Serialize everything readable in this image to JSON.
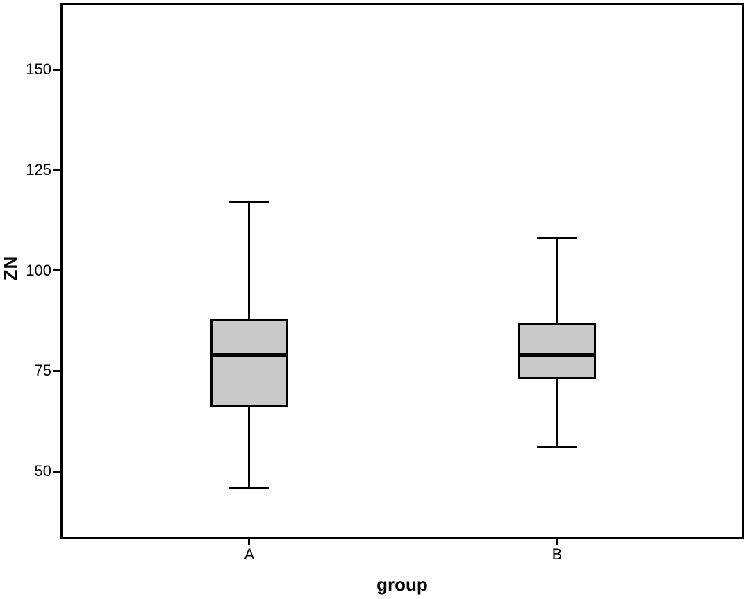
{
  "figure": {
    "background": "#ffffff"
  },
  "chart_data": {
    "type": "boxplot",
    "title": "",
    "xlabel": "group",
    "ylabel": "ZN",
    "categories": [
      "A",
      "B"
    ],
    "yticks": [
      50,
      75,
      100,
      125,
      150
    ],
    "ylim": [
      33.3,
      166.6
    ],
    "grid": false,
    "legend": "none",
    "boxes": [
      {
        "category": "A",
        "min": 46,
        "q1": 66,
        "median": 79,
        "q3": 88,
        "max": 117,
        "x_frac": 0.2764
      },
      {
        "category": "B",
        "min": 56,
        "q1": 73,
        "median": 79,
        "q3": 87,
        "max": 108,
        "x_frac": 0.7266
      }
    ],
    "colors": {
      "box_fill": "#c9c9c9",
      "line": "#000000"
    }
  }
}
